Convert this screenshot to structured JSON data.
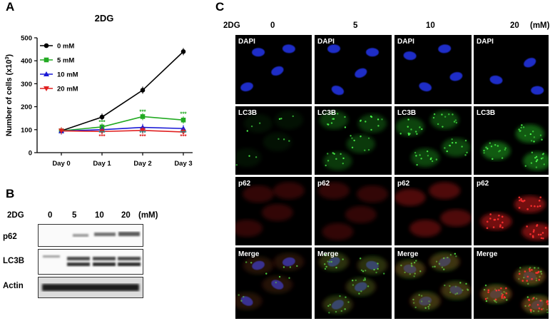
{
  "panel_a": {
    "letter": "A",
    "chart_data": {
      "type": "line",
      "title": "2DG",
      "ylabel": "Number of cells (x10",
      "ylabel_sup": "3",
      "ylabel_end": ")",
      "categories": [
        "Day 0",
        "Day 1",
        "Day 2",
        "Day 3"
      ],
      "yticks": [
        0,
        100,
        200,
        300,
        400,
        500
      ],
      "ylim": [
        0,
        500
      ],
      "series": [
        {
          "name": "0 mM",
          "color": "#000000",
          "marker": "circle",
          "values": [
            95,
            155,
            272,
            440
          ]
        },
        {
          "name": "5 mM",
          "color": "#22aa22",
          "marker": "square",
          "values": [
            95,
            112,
            157,
            142
          ]
        },
        {
          "name": "10 mM",
          "color": "#1a1ad6",
          "marker": "triangle-up",
          "values": [
            94,
            100,
            110,
            105
          ]
        },
        {
          "name": "20 mM",
          "color": "#e02020",
          "marker": "triangle-down",
          "values": [
            95,
            92,
            97,
            90
          ]
        }
      ],
      "significance": [
        {
          "category": "Day 1",
          "label": "***",
          "color": "#22aa22",
          "y": 125
        },
        {
          "category": "Day 1",
          "label": "***",
          "color": "#1a8a8a",
          "y": 77
        },
        {
          "category": "Day 1",
          "label": "***",
          "color": "#e02020",
          "y": 62
        },
        {
          "category": "Day 2",
          "label": "***",
          "color": "#22aa22",
          "y": 170
        },
        {
          "category": "Day 2",
          "label": "***",
          "color": "#1a8a8a",
          "y": 77
        },
        {
          "category": "Day 2",
          "label": "***",
          "color": "#e02020",
          "y": 62
        },
        {
          "category": "Day 3",
          "label": "***",
          "color": "#22aa22",
          "y": 160
        },
        {
          "category": "Day 3",
          "label": "***",
          "color": "#1a8a8a",
          "y": 77
        },
        {
          "category": "Day 3",
          "label": "***",
          "color": "#e02020",
          "y": 62
        }
      ],
      "legend_position": "top-left"
    }
  },
  "panel_b": {
    "letter": "B",
    "header_label": "2DG",
    "doses": [
      "0",
      "5",
      "10",
      "20"
    ],
    "unit": "(mM)",
    "rows": [
      "p62",
      "LC3B",
      "Actin"
    ]
  },
  "panel_c": {
    "letter": "C",
    "header_label": "2DG",
    "doses": [
      "0",
      "5",
      "10",
      "20"
    ],
    "unit": "(mM)",
    "row_labels": [
      "DAPI",
      "LC3B",
      "p62",
      "Merge"
    ]
  }
}
